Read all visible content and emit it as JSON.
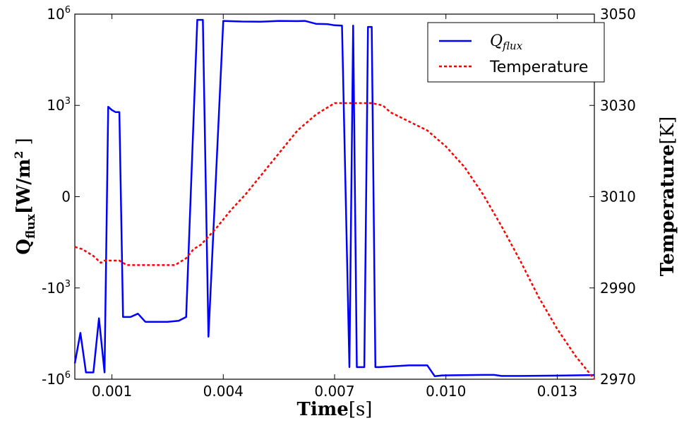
{
  "chart_data": {
    "type": "line",
    "title": "",
    "x_ticks": [
      "0.001",
      "0.004",
      "0.007",
      "0.010",
      "0.013"
    ],
    "x_tick_values": [
      0.001,
      0.004,
      0.007,
      0.01,
      0.013
    ],
    "xlim": [
      0.0,
      0.014
    ],
    "xlabel": {
      "main": "Time",
      "unit": "[s]"
    },
    "ylabel_left": {
      "main": "Q",
      "sub": "flux",
      "unit": "[W/m",
      "sup": "2",
      "unit_end": " ]"
    },
    "ylabel_right": {
      "main": "Temperature",
      "unit": "[K]"
    },
    "y_left_scale": "symlog",
    "y_left_ticks": [
      {
        "base": "10",
        "exp": "6",
        "value": 1000000
      },
      {
        "base": "10",
        "exp": "3",
        "value": 1000
      },
      {
        "base": "0",
        "exp": "",
        "value": 0
      },
      {
        "base": "-10",
        "exp": "3",
        "value": -1000
      },
      {
        "base": "-10",
        "exp": "6",
        "value": -1000000
      }
    ],
    "y_right_ticks": [
      "3050",
      "3030",
      "3010",
      "2990",
      "2970"
    ],
    "y_right_tick_values": [
      3050,
      3030,
      3010,
      2990,
      2970
    ],
    "y_right_lim": [
      2970,
      3050
    ],
    "legend_position": "top-right",
    "series": [
      {
        "name": "Q",
        "name_sub": "flux",
        "axis": "left",
        "color": "#0000ff",
        "style": "solid",
        "x": [
          0.0,
          0.00015,
          0.0003,
          0.0005,
          0.00065,
          0.0008,
          0.0009,
          0.001,
          0.0011,
          0.0012,
          0.0013,
          0.0015,
          0.0017,
          0.0019,
          0.0025,
          0.0028,
          0.003,
          0.0033,
          0.00345,
          0.0036,
          0.004,
          0.0045,
          0.005,
          0.0055,
          0.006,
          0.0062,
          0.0065,
          0.0068,
          0.007,
          0.0072,
          0.0074,
          0.0075,
          0.0076,
          0.0077,
          0.0078,
          0.0079,
          0.008,
          0.0081,
          0.0082,
          0.009,
          0.0095,
          0.0097,
          0.0099,
          0.011,
          0.0113,
          0.0115,
          0.012,
          0.013,
          0.014
        ],
        "y": [
          -300000,
          -30000,
          -600000,
          -600000,
          -10000,
          -600000,
          900,
          700,
          600,
          600,
          -9000,
          -9000,
          -7000,
          -13000,
          -13000,
          -12000,
          -9000,
          650000,
          650000,
          -40000,
          600000,
          570000,
          560000,
          600000,
          590000,
          600000,
          480000,
          470000,
          430000,
          420000,
          -400000,
          420000,
          -400000,
          -400000,
          -400000,
          380000,
          380000,
          -400000,
          -400000,
          -350000,
          -350000,
          -800000,
          -750000,
          -720000,
          -720000,
          -780000,
          -780000,
          -760000,
          -730000
        ]
      },
      {
        "name": "Temperature",
        "axis": "right",
        "color": "#ff0000",
        "style": "dashed",
        "x": [
          0.0,
          0.0002,
          0.0005,
          0.0007,
          0.0008,
          0.001,
          0.0012,
          0.0014,
          0.002,
          0.0027,
          0.003,
          0.0032,
          0.0034,
          0.0038,
          0.0042,
          0.0046,
          0.005,
          0.0055,
          0.006,
          0.0065,
          0.007,
          0.0072,
          0.0075,
          0.008,
          0.0083,
          0.0085,
          0.009,
          0.0095,
          0.01,
          0.0105,
          0.011,
          0.0115,
          0.012,
          0.0125,
          0.013,
          0.0135,
          0.014
        ],
        "y": [
          2999,
          2998.5,
          2997,
          2995.5,
          2996,
          2996,
          2996,
          2995,
          2995,
          2995,
          2996.5,
          2998.5,
          2999.5,
          3003,
          3007,
          3010.5,
          3014.5,
          3019.5,
          3024.5,
          3028,
          3030.5,
          3030.5,
          3030.5,
          3030.5,
          3030,
          3028.5,
          3026.5,
          3024.5,
          3021,
          3016.5,
          3010.5,
          3003.5,
          2996,
          2988,
          2981,
          2975,
          2970
        ]
      }
    ]
  }
}
